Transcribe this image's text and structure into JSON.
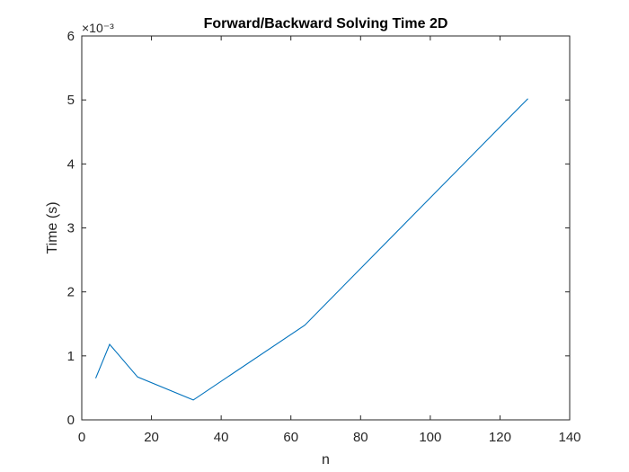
{
  "chart_data": {
    "type": "line",
    "title": "Forward/Backward Solving Time 2D",
    "xlabel": "n",
    "ylabel": "Time (s)",
    "y_exponent_label": "×10⁻³",
    "xlim": [
      0,
      140
    ],
    "ylim": [
      0,
      0.006
    ],
    "xticks": [
      0,
      20,
      40,
      60,
      80,
      100,
      120,
      140
    ],
    "xtick_labels": [
      "0",
      "20",
      "40",
      "60",
      "80",
      "100",
      "120",
      "140"
    ],
    "yticks": [
      0,
      0.001,
      0.002,
      0.003,
      0.004,
      0.005,
      0.006
    ],
    "ytick_labels": [
      "0",
      "1",
      "2",
      "3",
      "4",
      "5",
      "6"
    ],
    "grid": false,
    "series": [
      {
        "color": "#0072BD",
        "x": [
          4,
          8,
          16,
          32,
          64,
          128
        ],
        "y": [
          0.00065,
          0.00118,
          0.00067,
          0.00031,
          0.00148,
          0.00502
        ]
      }
    ]
  }
}
